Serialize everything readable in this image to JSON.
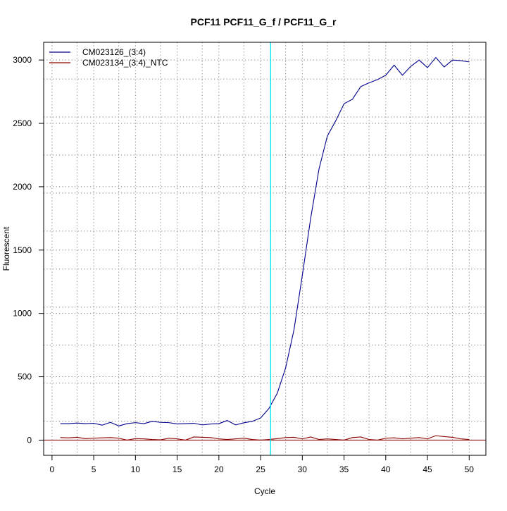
{
  "chart_data": {
    "type": "line",
    "title": "PCF11  PCF11_G_f / PCF11_G_r",
    "xlabel": "Cycle",
    "ylabel": "Fluorescent",
    "xlim": [
      -1,
      52
    ],
    "ylim": [
      -120,
      3140
    ],
    "xticks": [
      0,
      5,
      10,
      15,
      20,
      25,
      30,
      35,
      40,
      45,
      50
    ],
    "yticks": [
      0,
      500,
      1000,
      1500,
      2000,
      2500,
      3000
    ],
    "x_gridlines": [
      3,
      8,
      13,
      18,
      23,
      28,
      33,
      38,
      43,
      48
    ],
    "y_gridlines": [
      150,
      450,
      750,
      1050,
      1350,
      1650,
      1950,
      2250,
      2550,
      2850
    ],
    "baseline": 0,
    "baseline_color": "#8b0000",
    "threshold_cycle": 26.2,
    "threshold_color": "#00e5ee",
    "grid": true,
    "legend_position": "top-left",
    "series": [
      {
        "name": "CM023126_(3:4)",
        "color": "#00008b",
        "x": [
          1,
          2,
          3,
          4,
          5,
          6,
          7,
          8,
          9,
          10,
          11,
          12,
          13,
          14,
          15,
          16,
          17,
          18,
          19,
          20,
          21,
          22,
          23,
          24,
          25,
          26,
          27,
          28,
          29,
          30,
          31,
          32,
          33,
          34,
          35,
          36,
          37,
          38,
          39,
          40,
          41,
          42,
          43,
          44,
          45,
          46,
          47,
          48,
          49,
          50
        ],
        "y": [
          130,
          130,
          135,
          130,
          133,
          118,
          140,
          112,
          130,
          138,
          130,
          148,
          140,
          138,
          128,
          130,
          133,
          120,
          127,
          130,
          155,
          120,
          137,
          148,
          175,
          250,
          370,
          570,
          870,
          1300,
          1750,
          2140,
          2400,
          2520,
          2655,
          2690,
          2790,
          2820,
          2845,
          2880,
          2960,
          2880,
          2950,
          3000,
          2940,
          3020,
          2945,
          3000,
          2995,
          2985
        ]
      },
      {
        "name": "CM023134_(3:4)_NTC",
        "color": "#8b0000",
        "x": [
          1,
          2,
          3,
          4,
          5,
          6,
          7,
          8,
          9,
          10,
          11,
          12,
          13,
          14,
          15,
          16,
          17,
          18,
          19,
          20,
          21,
          22,
          23,
          24,
          25,
          26,
          27,
          28,
          29,
          30,
          31,
          32,
          33,
          34,
          35,
          36,
          37,
          38,
          39,
          40,
          41,
          42,
          43,
          44,
          45,
          46,
          47,
          48,
          49,
          50
        ],
        "y": [
          20,
          18,
          22,
          12,
          15,
          18,
          20,
          15,
          0,
          12,
          10,
          5,
          2,
          15,
          10,
          0,
          25,
          22,
          20,
          10,
          5,
          10,
          15,
          5,
          0,
          5,
          12,
          20,
          22,
          10,
          25,
          5,
          10,
          5,
          0,
          20,
          25,
          5,
          0,
          15,
          18,
          10,
          15,
          20,
          10,
          35,
          28,
          22,
          10,
          5
        ]
      }
    ]
  }
}
